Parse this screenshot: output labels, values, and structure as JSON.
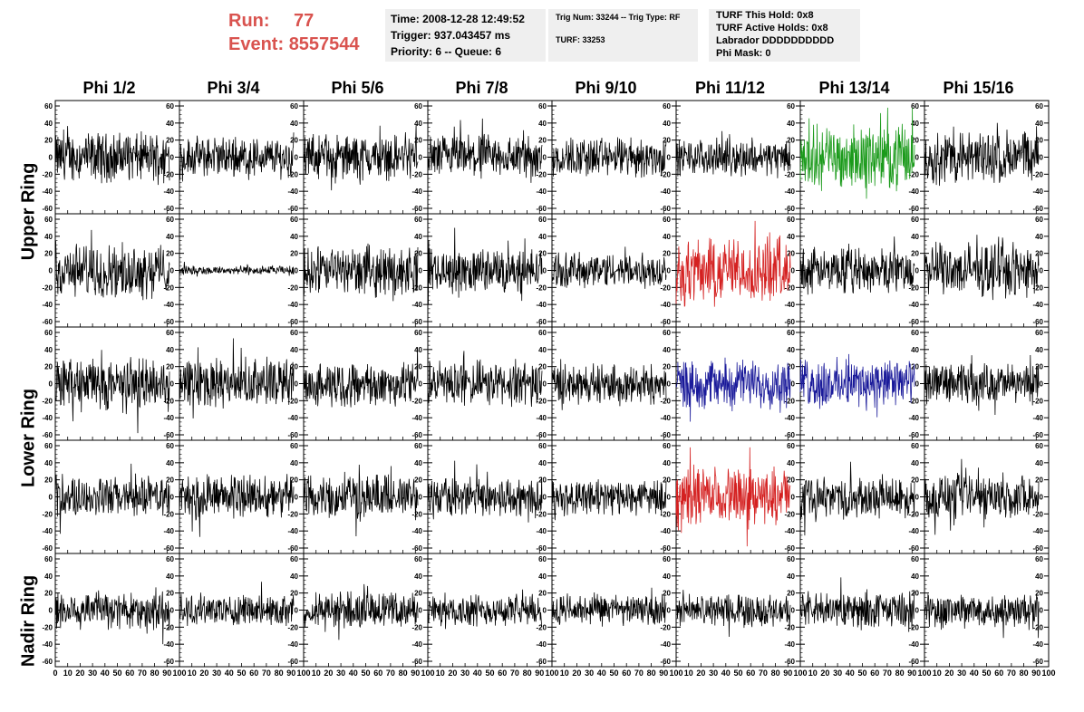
{
  "header": {
    "run_label": "Run:",
    "run_value": "77",
    "event_label": "Event:",
    "event_value": "8557544"
  },
  "info_time": {
    "time": "Time: 2008-12-28 12:49:52",
    "trigger": "Trigger: 937.043457 ms",
    "priority": "Priority: 6 -- Queue: 6"
  },
  "info_trig": {
    "trig": "Trig Num: 33244 -- Trig Type: RF",
    "turf": "TURF: 33253"
  },
  "info_turf": {
    "this_hold": "TURF This Hold: 0x8",
    "active_holds": "TURF Active Holds: 0x8",
    "labrador": "Labrador DDDDDDDDDD",
    "phi_mask": "Phi Mask: 0"
  },
  "columns": [
    "Phi 1/2",
    "Phi 3/4",
    "Phi 5/6",
    "Phi 7/8",
    "Phi 9/10",
    "Phi 11/12",
    "Phi 13/14",
    "Phi 15/16"
  ],
  "ring_labels": [
    "Upper Ring",
    "Lower Ring",
    "Nadir Ring"
  ],
  "chart_data": {
    "type": "line",
    "description_rows": 5,
    "x_ticks": [
      "0",
      "10",
      "20",
      "30",
      "40",
      "50",
      "60",
      "70",
      "80",
      "90",
      "100"
    ],
    "y_ticks_left": [
      "60",
      "40",
      "20",
      "0",
      "-20",
      "-40",
      "-60"
    ],
    "y_ticks_right": [
      "60",
      "40",
      "20",
      "0",
      "-20",
      "-40",
      "-60"
    ],
    "xlim": [
      0,
      100
    ],
    "ylim": [
      -60,
      60
    ],
    "trace_x_range": [
      0,
      92
    ],
    "colors": {
      "default": "#000000",
      "green": "#1a9a1a",
      "red": "#d42020",
      "blue": "#1a1a9a"
    },
    "highlights": [
      {
        "row": 0,
        "col": 6,
        "color": "green"
      },
      {
        "row": 1,
        "col": 5,
        "color": "red"
      },
      {
        "row": 2,
        "col": 5,
        "color": "blue"
      },
      {
        "row": 2,
        "col": 6,
        "color": "blue"
      },
      {
        "row": 3,
        "col": 5,
        "color": "red"
      }
    ],
    "amplitudes": [
      [
        22,
        18,
        20,
        20,
        18,
        16,
        28,
        24
      ],
      [
        24,
        4,
        22,
        20,
        16,
        30,
        20,
        24
      ],
      [
        24,
        22,
        20,
        20,
        18,
        22,
        22,
        18
      ],
      [
        18,
        20,
        20,
        18,
        16,
        26,
        18,
        20
      ],
      [
        18,
        14,
        16,
        14,
        14,
        14,
        16,
        16
      ]
    ]
  }
}
